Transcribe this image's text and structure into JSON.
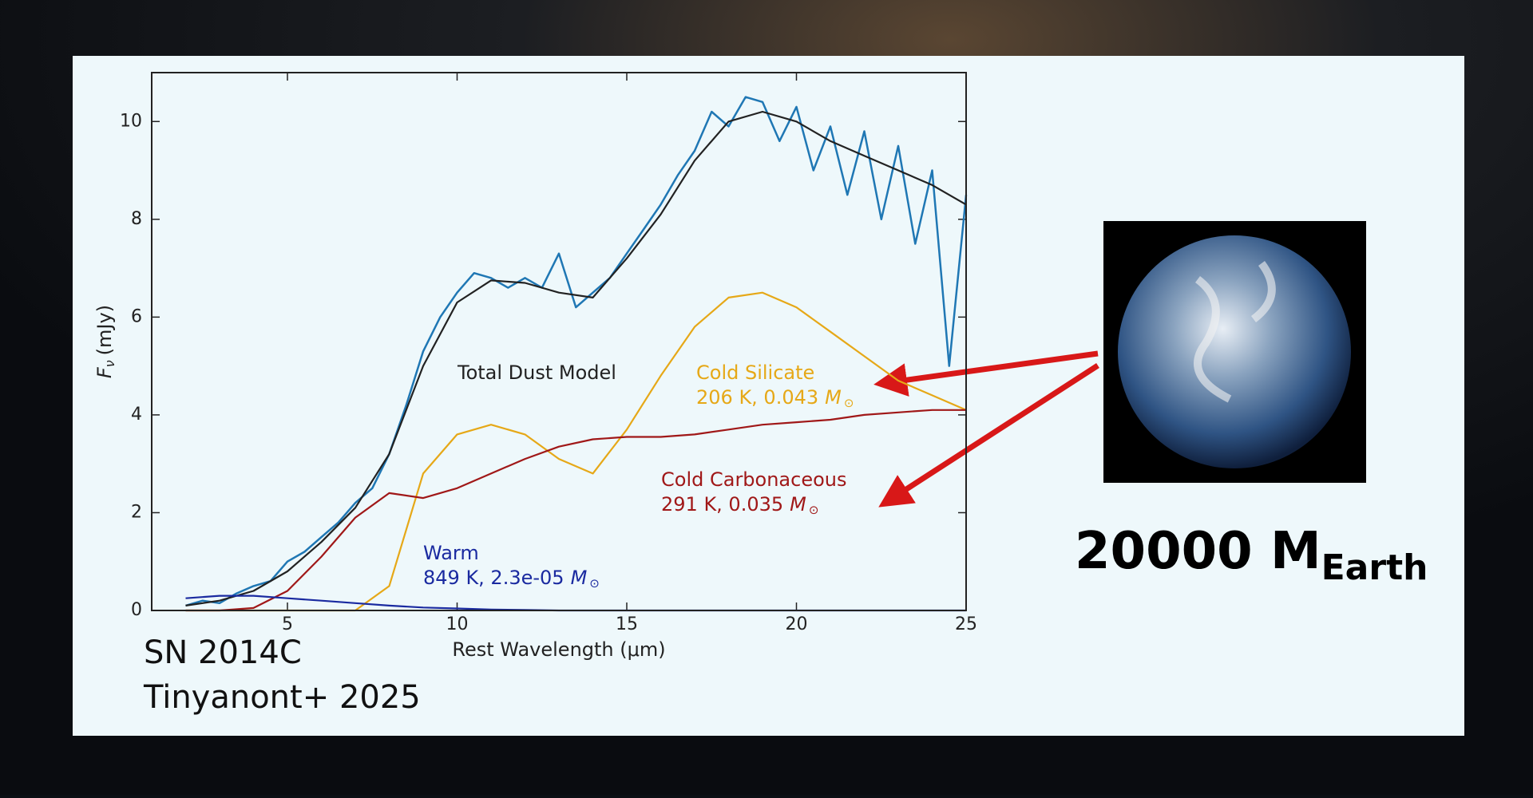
{
  "chart_data": {
    "type": "line",
    "x": [
      2,
      3,
      4,
      5,
      6,
      7,
      8,
      9,
      10,
      11,
      12,
      13,
      14,
      15,
      16,
      17,
      18,
      19,
      20,
      21,
      22,
      23,
      24,
      25
    ],
    "xlim": [
      1,
      25
    ],
    "ylim": [
      0,
      11
    ],
    "xticks": [
      5,
      10,
      15,
      20,
      25
    ],
    "yticks": [
      0,
      2,
      4,
      6,
      8,
      10
    ],
    "xlabel": "Rest Wavelength (μm)",
    "ylabel": {
      "symbol": "F",
      "sub": "ν",
      "unit": "(mJy)"
    },
    "series": [
      {
        "color": "#1f77b4",
        "x": [
          2,
          2.5,
          3,
          3.5,
          4,
          4.5,
          5,
          5.5,
          6,
          6.5,
          7,
          7.5,
          8,
          8.5,
          9,
          9.5,
          10,
          10.5,
          11,
          11.5,
          12,
          12.5,
          13,
          13.5,
          14,
          14.5,
          15,
          15.5,
          16,
          16.5,
          17,
          17.5,
          18,
          18.5,
          19,
          19.5,
          20,
          20.5,
          21,
          21.5,
          22,
          22.5,
          23,
          23.5,
          24,
          24.5,
          25
        ],
        "values": [
          0.1,
          0.2,
          0.15,
          0.35,
          0.5,
          0.6,
          1.0,
          1.2,
          1.5,
          1.8,
          2.2,
          2.5,
          3.2,
          4.2,
          5.3,
          6.0,
          6.5,
          6.9,
          6.8,
          6.6,
          6.8,
          6.6,
          7.3,
          6.2,
          6.5,
          6.8,
          7.3,
          7.8,
          8.3,
          8.9,
          9.4,
          10.2,
          9.9,
          10.5,
          10.4,
          9.6,
          10.3,
          9.0,
          9.9,
          8.5,
          9.8,
          8.0,
          9.5,
          7.5,
          9.0,
          5.0,
          8.5
        ]
      },
      {
        "name": "Total Dust Model",
        "color": "#222222",
        "values": [
          0.1,
          0.2,
          0.4,
          0.8,
          1.4,
          2.1,
          3.2,
          5.0,
          6.3,
          6.75,
          6.7,
          6.5,
          6.4,
          7.2,
          8.1,
          9.2,
          10.0,
          10.2,
          10.0,
          9.6,
          9.3,
          9.0,
          8.7,
          8.3
        ]
      },
      {
        "name": "Cold Silicate",
        "color": "#e6a817",
        "detail": "206 K, 0.043",
        "mass": "M",
        "mass_sub": "⊙",
        "values": [
          0,
          0,
          0,
          0,
          0,
          0,
          0.5,
          2.8,
          3.6,
          3.8,
          3.6,
          3.1,
          2.8,
          3.7,
          4.8,
          5.8,
          6.4,
          6.5,
          6.2,
          5.7,
          5.2,
          4.7,
          4.4,
          4.1
        ]
      },
      {
        "name": "Cold Carbonaceous",
        "color": "#a01818",
        "detail": "291 K, 0.035",
        "mass": "M",
        "mass_sub": "⊙",
        "values": [
          0,
          0,
          0.05,
          0.4,
          1.1,
          1.9,
          2.4,
          2.3,
          2.5,
          2.8,
          3.1,
          3.35,
          3.5,
          3.55,
          3.55,
          3.6,
          3.7,
          3.8,
          3.85,
          3.9,
          4.0,
          4.05,
          4.1,
          4.1
        ]
      },
      {
        "name": "Warm",
        "color": "#1a2aa0",
        "detail": "849 K, 2.3e-05",
        "mass": "M",
        "mass_sub": "⊙",
        "values": [
          0.25,
          0.3,
          0.3,
          0.25,
          0.2,
          0.15,
          0.1,
          0.06,
          0.04,
          0.02,
          0.01,
          0,
          0,
          0,
          0,
          0,
          0,
          0,
          0,
          0,
          0,
          0,
          0,
          0
        ]
      }
    ]
  },
  "credit": [
    "SN 2014C",
    "Tinyanont+ 2025"
  ],
  "comparison": {
    "main": "20000 M",
    "sub": "Earth"
  }
}
